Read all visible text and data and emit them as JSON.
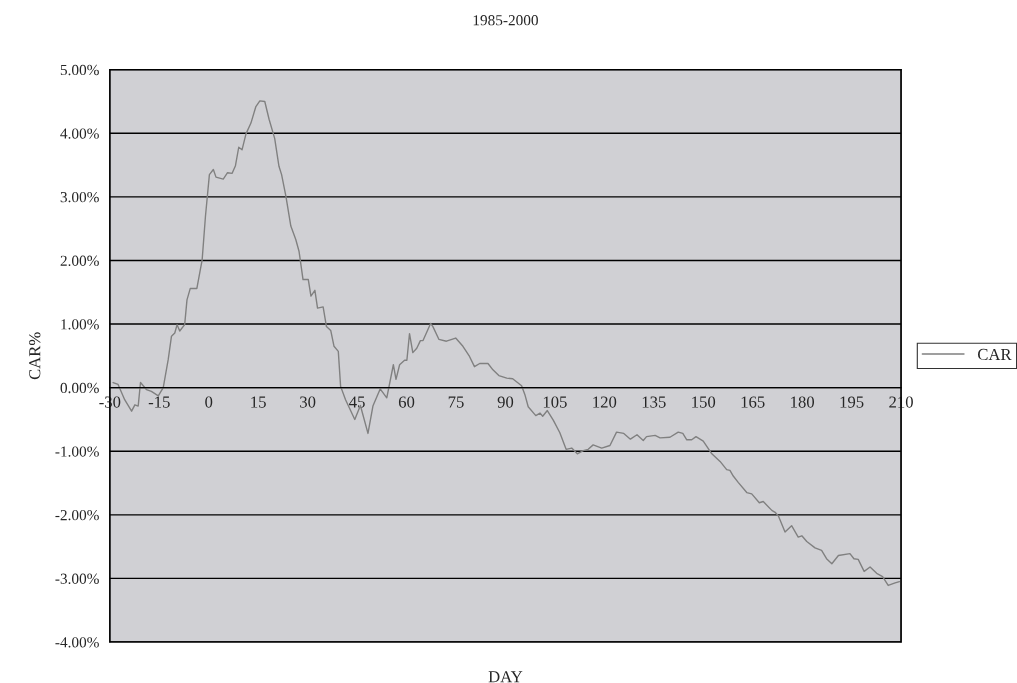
{
  "chart_data": {
    "type": "line",
    "title": "1985-2000",
    "xlabel": "DAY",
    "ylabel": "CAR%",
    "xlim": [
      -30,
      210
    ],
    "xticks": [
      -30,
      -15,
      0,
      15,
      30,
      45,
      60,
      75,
      90,
      105,
      120,
      135,
      150,
      165,
      180,
      195,
      210
    ],
    "ylim": [
      -4,
      5
    ],
    "yticks": [
      {
        "value": -4,
        "label": "-4.00%"
      },
      {
        "value": -3,
        "label": "-3.00%"
      },
      {
        "value": -2,
        "label": "-2.00%"
      },
      {
        "value": -1,
        "label": "-1.00%"
      },
      {
        "value": 0,
        "label": "0.00%"
      },
      {
        "value": 1,
        "label": "1.00%"
      },
      {
        "value": 2,
        "label": "2.00%"
      },
      {
        "value": 3,
        "label": "3.00%"
      },
      {
        "value": 4,
        "label": "4.00%"
      },
      {
        "value": 5,
        "label": "5.00%"
      }
    ],
    "grid": "y",
    "legend": "right",
    "marker": "none",
    "line_style": "solid",
    "series": [
      {
        "name": "CAR",
        "color": "#808080",
        "x": [
          -29,
          -27.5,
          -25.5,
          -23.4,
          -22.4,
          -21.4,
          -20.7,
          -18.9,
          -17.4,
          -15.3,
          -13.8,
          -12.3,
          -11.3,
          -10.3,
          -9.6,
          -8.8,
          -7.3,
          -6.6,
          -5.6,
          -3.6,
          -2,
          -1,
          0.2,
          1.4,
          2.2,
          4.4,
          5.7,
          7.1,
          8.1,
          9.1,
          10.1,
          11.3,
          12.8,
          14.3,
          15.5,
          17,
          18.3,
          20,
          21.3,
          22.1,
          23.4,
          24.9,
          26.4,
          27.4,
          28.6,
          30.2,
          31,
          32.2,
          33,
          34.7,
          35.7,
          37,
          38,
          39.3,
          40,
          41.5,
          44.3,
          46,
          48.3,
          49.8,
          52,
          54,
          56,
          56.8,
          57.9,
          59.4,
          60.1,
          60.9,
          61.9,
          63.1,
          64.2,
          65,
          67.3,
          68,
          69.8,
          72.1,
          74.9,
          77.1,
          79.1,
          80.6,
          82.2,
          84.7,
          86.2,
          88,
          90.4,
          92.2,
          94.9,
          95.9,
          96.9,
          99.2,
          100.5,
          101.3,
          102.7,
          104.5,
          106.5,
          108.4,
          110.1,
          111.8,
          113.6,
          115.1,
          116.6,
          119.2,
          121.7,
          123.7,
          125.9,
          127.9,
          129.9,
          131.8,
          132.8,
          135.4,
          136.9,
          139.9,
          142.4,
          143.8,
          145,
          146.5,
          147.8,
          150,
          152.6,
          155.1,
          157.1,
          158.1,
          159.1,
          160.6,
          163.2,
          164.7,
          167,
          168.2,
          170.8,
          171.8,
          172.8,
          174.8,
          176.8,
          178.8,
          179.9,
          181.4,
          183.9,
          185.9,
          187.4,
          189,
          191,
          194.5,
          195.7,
          197,
          198.8,
          200.6,
          202.6,
          204.4,
          206.1,
          208.2,
          209.5
        ],
        "values": [
          0.08,
          0.05,
          -0.19,
          -0.37,
          -0.27,
          -0.29,
          0.08,
          -0.03,
          -0.06,
          -0.13,
          0,
          0.44,
          0.81,
          0.86,
          0.99,
          0.89,
          0.99,
          1.38,
          1.56,
          1.56,
          2.01,
          2.69,
          3.35,
          3.43,
          3.31,
          3.28,
          3.38,
          3.37,
          3.49,
          3.78,
          3.74,
          3.99,
          4.16,
          4.42,
          4.51,
          4.5,
          4.22,
          3.92,
          3.48,
          3.35,
          3.01,
          2.54,
          2.33,
          2.14,
          1.7,
          1.7,
          1.44,
          1.53,
          1.25,
          1.27,
          0.96,
          0.9,
          0.65,
          0.57,
          0.02,
          -0.19,
          -0.5,
          -0.28,
          -0.72,
          -0.29,
          -0.02,
          -0.16,
          0.36,
          0.13,
          0.36,
          0.43,
          0.43,
          0.85,
          0.55,
          0.62,
          0.74,
          0.74,
          1.01,
          0.96,
          0.76,
          0.73,
          0.78,
          0.65,
          0.49,
          0.33,
          0.38,
          0.38,
          0.28,
          0.19,
          0.15,
          0.14,
          0.03,
          -0.11,
          -0.3,
          -0.44,
          -0.4,
          -0.45,
          -0.36,
          -0.51,
          -0.71,
          -0.97,
          -0.95,
          -1.04,
          -0.99,
          -0.97,
          -0.9,
          -0.95,
          -0.91,
          -0.7,
          -0.72,
          -0.81,
          -0.74,
          -0.83,
          -0.77,
          -0.75,
          -0.79,
          -0.78,
          -0.7,
          -0.72,
          -0.82,
          -0.82,
          -0.77,
          -0.84,
          -1.04,
          -1.16,
          -1.29,
          -1.3,
          -1.39,
          -1.49,
          -1.65,
          -1.67,
          -1.81,
          -1.79,
          -1.93,
          -1.96,
          -2.02,
          -2.27,
          -2.17,
          -2.35,
          -2.33,
          -2.42,
          -2.52,
          -2.56,
          -2.69,
          -2.77,
          -2.64,
          -2.61,
          -2.69,
          -2.7,
          -2.89,
          -2.82,
          -2.92,
          -2.97,
          -3.11,
          -3.07,
          -3.05
        ]
      }
    ]
  }
}
